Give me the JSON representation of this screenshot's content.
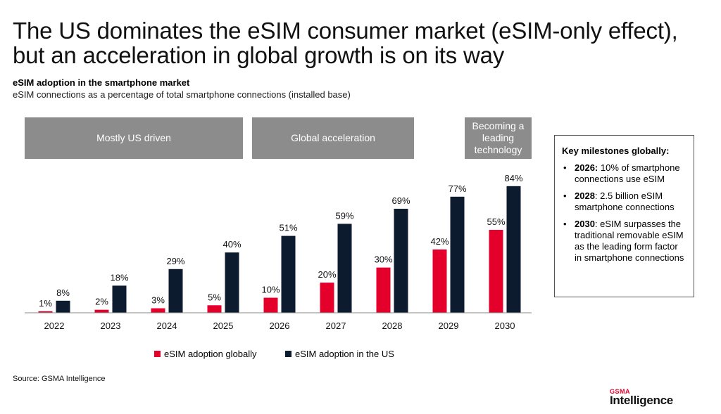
{
  "title": "The US dominates the eSIM consumer market (eSIM-only effect), but an acceleration in global growth is on its way",
  "subtitle_bold": "eSIM adoption in the smartphone market",
  "subtitle": "eSIM connections as a percentage of total smartphone connections (installed base)",
  "phases": [
    {
      "label": "Mostly US driven"
    },
    {
      "label": "Global acceleration"
    },
    {
      "label": "Becoming a leading technology"
    }
  ],
  "milestones": {
    "heading": "Key milestones globally:",
    "items": [
      {
        "key": "2026:",
        "text": " 10% of smartphone connections use eSIM"
      },
      {
        "key": "2028",
        "text": ": 2.5 billion eSIM smartphone connections"
      },
      {
        "key": "2030",
        "text": ": eSIM surpasses the traditional removable eSIM as the leading form factor in smartphone connections"
      }
    ]
  },
  "colors": {
    "global": "#e4002b",
    "us": "#0d1b2e",
    "phase_bg": "#8c8c8c"
  },
  "chart_data": {
    "type": "bar",
    "categories": [
      "2022",
      "2023",
      "2024",
      "2025",
      "2026",
      "2027",
      "2028",
      "2029",
      "2030"
    ],
    "series": [
      {
        "name": "eSIM adoption globally",
        "values": [
          1,
          2,
          3,
          5,
          10,
          20,
          30,
          42,
          55
        ],
        "labels": [
          "1%",
          "2%",
          "3%",
          "5%",
          "10%",
          "20%",
          "30%",
          "42%",
          "55%"
        ]
      },
      {
        "name": "eSIM adoption in the US",
        "values": [
          8,
          18,
          29,
          40,
          51,
          59,
          69,
          77,
          84
        ],
        "labels": [
          "8%",
          "18%",
          "29%",
          "40%",
          "51%",
          "59%",
          "69%",
          "77%",
          "84%"
        ]
      }
    ],
    "ylim": [
      0,
      100
    ],
    "legend_position": "bottom"
  },
  "source": "Source: GSMA Intelligence",
  "logo": {
    "top": "GSMA",
    "bottom": "Intelligence"
  }
}
